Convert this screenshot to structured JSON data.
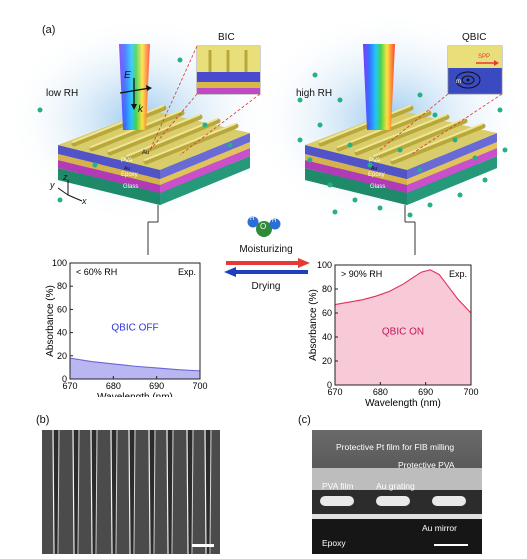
{
  "panel_labels": {
    "a": "(a)",
    "b": "(b)",
    "c": "(c)"
  },
  "scene": {
    "left_state": "low RH",
    "right_state": "high RH",
    "left_inset": "BIC",
    "right_inset": "QBIC",
    "inset_left_labels": {
      "E": "E",
      "k": "k"
    },
    "inset_right_labels": {
      "spp": "SPP",
      "m": "m"
    },
    "layers": {
      "au": "Au",
      "pva": "PVA",
      "au2": "Au",
      "epoxy": "Epoxy",
      "glass": "Glass"
    },
    "axes": {
      "x": "x",
      "y": "y",
      "z": "z"
    }
  },
  "molecule": {
    "atom_h": "H",
    "atom_o": "O"
  },
  "arrows": {
    "forward": "Moisturizing",
    "backward": "Drying",
    "forward_color": "#e53935",
    "backward_color": "#1e3fbf"
  },
  "chart_data": [
    {
      "type": "area",
      "corner_label": "< 60% RH",
      "tag": "Exp.",
      "annotation": "QBIC OFF",
      "annotation_color": "#2b35d6",
      "fill_color": "#b9b6f2",
      "xlabel": "Wavelength (nm)",
      "ylabel": "Absorbance (%)",
      "xlim": [
        670,
        700
      ],
      "ylim": [
        0,
        100
      ],
      "xticks": [
        670,
        680,
        690,
        700
      ],
      "yticks": [
        0,
        20,
        40,
        60,
        80,
        100
      ],
      "x": [
        670,
        675,
        680,
        685,
        690,
        695,
        700
      ],
      "y": [
        18,
        15,
        13,
        11,
        9.5,
        8,
        7
      ]
    },
    {
      "type": "area",
      "corner_label": "> 90% RH",
      "tag": "Exp.",
      "annotation": "QBIC ON",
      "annotation_color": "#c2185b",
      "fill_color": "#f8c9d6",
      "line_color": "#e0315a",
      "xlabel": "Wavelength (nm)",
      "ylabel": "Absorbance (%)",
      "xlim": [
        670,
        700
      ],
      "ylim": [
        0,
        100
      ],
      "xticks": [
        670,
        680,
        690,
        700
      ],
      "yticks": [
        0,
        20,
        40,
        60,
        80,
        100
      ],
      "x": [
        670,
        673,
        676,
        679,
        682,
        685,
        687,
        689,
        691,
        693,
        695,
        697,
        700
      ],
      "y": [
        67,
        69,
        71,
        74,
        78,
        84,
        89,
        94,
        96,
        92,
        82,
        72,
        60
      ]
    }
  ],
  "sem_c": {
    "pt_film": "Protective Pt film for FIB milling",
    "protective_pva": "Protective PVA",
    "pva_film": "PVA film",
    "au_grating": "Au grating",
    "au_mirror": "Au mirror",
    "epoxy": "Epoxy"
  }
}
